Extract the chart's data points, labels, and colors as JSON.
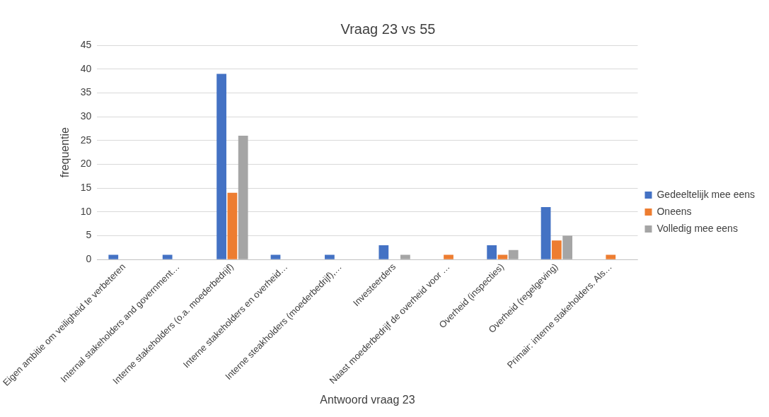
{
  "chart_data": {
    "type": "bar",
    "title": "Vraag 23 vs 55",
    "xlabel": "Antwoord vraag 23",
    "ylabel": "frequentie",
    "categories": [
      "Eigen ambitie om veiligheid te verbeteren",
      "Internal stakeholders and government…",
      "Interne stakeholders (o.a. moederbedrijf)",
      "Interne stakeholders en overheid…",
      "Interne steakholders (moederbedrijf),…",
      "Investeerders",
      "Naast moederbedrijf de overheid voor …",
      "Overheid (inspecties)",
      "Overheid (regelgeving)",
      "Primair: interne stakeholders. Als…"
    ],
    "series": [
      {
        "name": "Gedeeltelijk mee eens",
        "color": "#4472c4",
        "values": [
          1,
          1,
          39,
          1,
          1,
          3,
          0,
          3,
          11,
          0
        ]
      },
      {
        "name": "Oneens",
        "color": "#ed7d31",
        "values": [
          0,
          0,
          14,
          0,
          0,
          0,
          1,
          1,
          4,
          1
        ]
      },
      {
        "name": "Volledig mee eens",
        "color": "#a5a5a5",
        "values": [
          0,
          0,
          26,
          0,
          0,
          1,
          0,
          2,
          5,
          0
        ]
      }
    ],
    "ylim": [
      0,
      45
    ],
    "yticks": [
      0,
      5,
      10,
      15,
      20,
      25,
      30,
      35,
      40,
      45
    ],
    "grid": "y",
    "legend": "right"
  }
}
